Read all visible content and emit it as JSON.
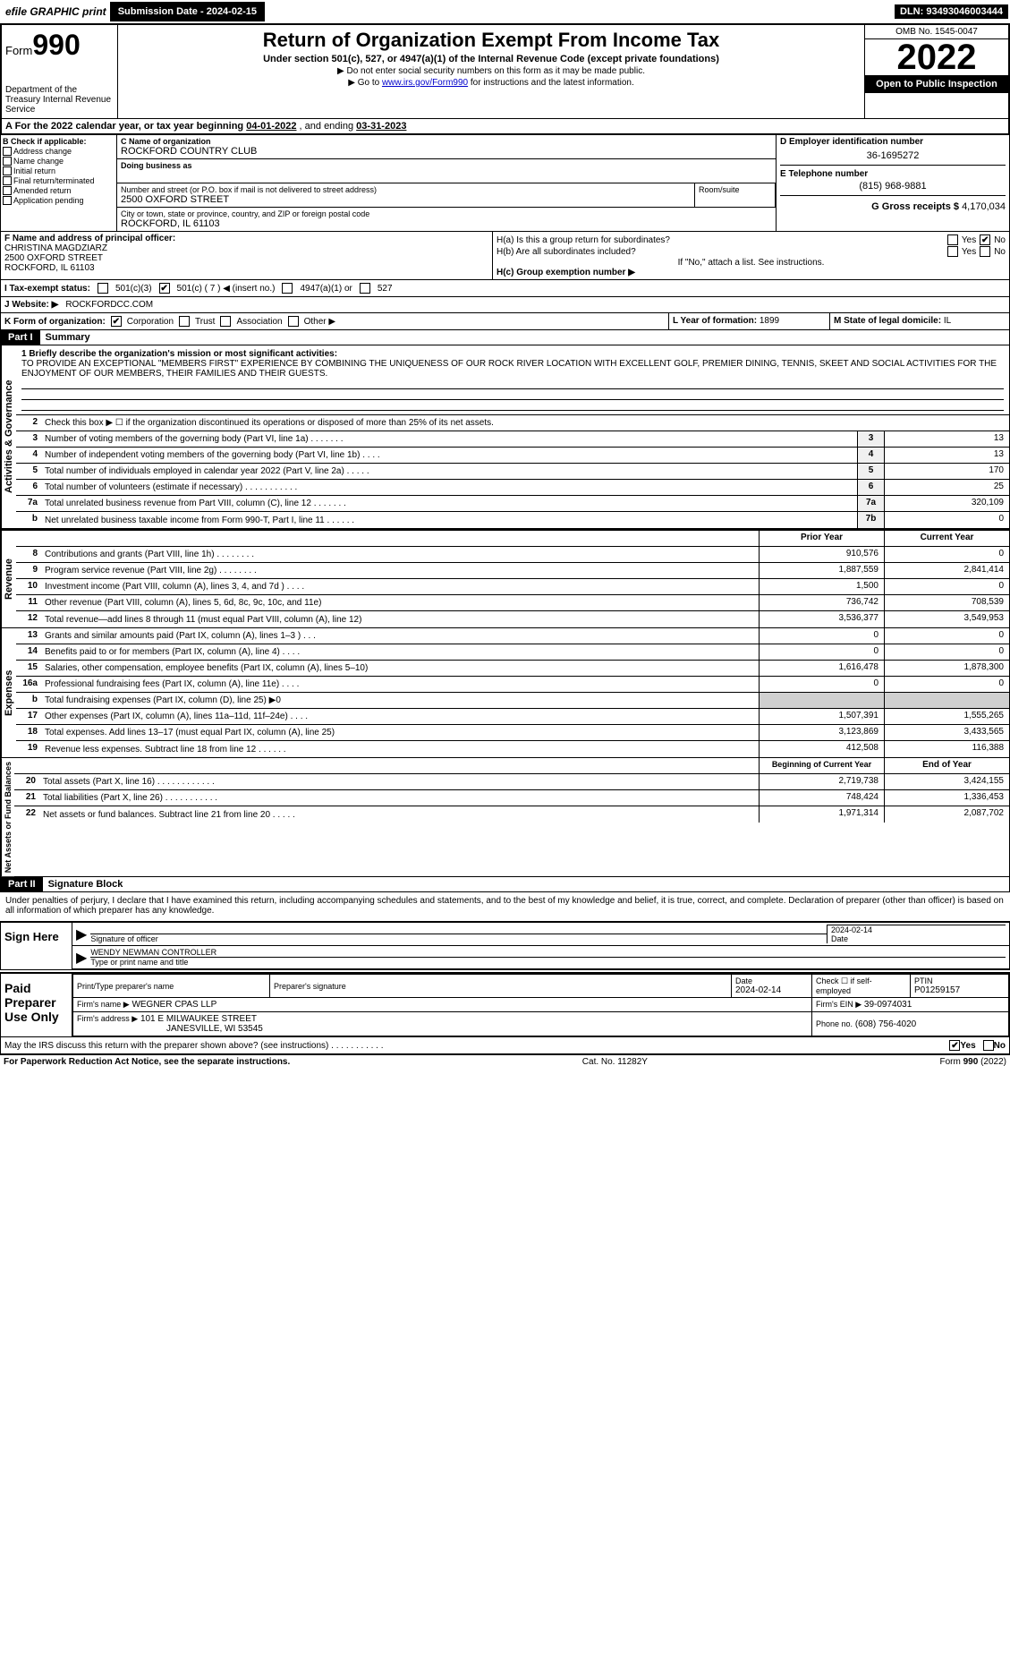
{
  "topbar": {
    "efile": "efile GRAPHIC print",
    "submission": "Submission Date - 2024-02-15",
    "dln": "DLN: 93493046003444"
  },
  "header": {
    "form_label": "Form",
    "form_no": "990",
    "dept": "Department of the Treasury Internal Revenue Service",
    "title": "Return of Organization Exempt From Income Tax",
    "subtitle": "Under section 501(c), 527, or 4947(a)(1) of the Internal Revenue Code (except private foundations)",
    "note1": "▶ Do not enter social security numbers on this form as it may be made public.",
    "note2_pre": "▶ Go to ",
    "note2_link": "www.irs.gov/Form990",
    "note2_post": " for instructions and the latest information.",
    "omb": "OMB No. 1545-0047",
    "year": "2022",
    "inspection": "Open to Public Inspection"
  },
  "period": {
    "label_a": "A For the 2022 calendar year, or tax year beginning ",
    "begin": "04-01-2022",
    "mid": " , and ending ",
    "end": "03-31-2023"
  },
  "box_b": {
    "title": "B Check if applicable:",
    "opts": [
      "Address change",
      "Name change",
      "Initial return",
      "Final return/terminated",
      "Amended return",
      "Application pending"
    ]
  },
  "box_c": {
    "name_label": "C Name of organization",
    "name": "ROCKFORD COUNTRY CLUB",
    "dba_label": "Doing business as",
    "addr_label": "Number and street (or P.O. box if mail is not delivered to street address)",
    "room_label": "Room/suite",
    "addr": "2500 OXFORD STREET",
    "city_label": "City or town, state or province, country, and ZIP or foreign postal code",
    "city": "ROCKFORD, IL  61103"
  },
  "box_d": {
    "label": "D Employer identification number",
    "val": "36-1695272"
  },
  "box_e": {
    "label": "E Telephone number",
    "val": "(815) 968-9881"
  },
  "box_g": {
    "label": "G Gross receipts $",
    "val": "4,170,034"
  },
  "box_f": {
    "label": "F Name and address of principal officer:",
    "name": "CHRISTINA MAGDZIARZ",
    "addr1": "2500 OXFORD STREET",
    "addr2": "ROCKFORD, IL  61103"
  },
  "box_h": {
    "a": "H(a)  Is this a group return for subordinates?",
    "b": "H(b)  Are all subordinates included?",
    "b_note": "If \"No,\" attach a list. See instructions.",
    "c": "H(c)  Group exemption number ▶"
  },
  "box_i": {
    "label": "I Tax-exempt status:",
    "c7": "501(c) ( 7 ) ◀ (insert no.)",
    "c3": "501(c)(3)",
    "a1": "4947(a)(1) or",
    "s527": "527"
  },
  "box_j": {
    "label": "J Website: ▶",
    "val": "ROCKFORDCC.COM"
  },
  "box_k": {
    "label": "K Form of organization:",
    "corp": "Corporation",
    "trust": "Trust",
    "assoc": "Association",
    "other": "Other ▶"
  },
  "box_l": {
    "label": "L Year of formation:",
    "val": "1899"
  },
  "box_m": {
    "label": "M State of legal domicile:",
    "val": "IL"
  },
  "part1": {
    "hdr": "Part I",
    "title": "Summary",
    "line1_label": "1 Briefly describe the organization's mission or most significant activities:",
    "mission": "TO PROVIDE AN EXCEPTIONAL \"MEMBERS FIRST\" EXPERIENCE BY COMBINING THE UNIQUENESS OF OUR ROCK RIVER LOCATION WITH EXCELLENT GOLF, PREMIER DINING, TENNIS, SKEET AND SOCIAL ACTIVITIES FOR THE ENJOYMENT OF OUR MEMBERS, THEIR FAMILIES AND THEIR GUESTS.",
    "line2": "Check this box ▶ ☐ if the organization discontinued its operations or disposed of more than 25% of its net assets.",
    "gov_label": "Activities & Governance",
    "rows_gov": [
      {
        "n": "3",
        "d": "Number of voting members of the governing body (Part VI, line 1a)   .    .    .    .    .    .    .",
        "b": "3",
        "v": "13"
      },
      {
        "n": "4",
        "d": "Number of independent voting members of the governing body (Part VI, line 1b)  .    .    .    .",
        "b": "4",
        "v": "13"
      },
      {
        "n": "5",
        "d": "Total number of individuals employed in calendar year 2022 (Part V, line 2a)  .    .    .    .    .",
        "b": "5",
        "v": "170"
      },
      {
        "n": "6",
        "d": "Total number of volunteers (estimate if necessary)    .    .    .    .    .    .    .    .    .    .    .",
        "b": "6",
        "v": "25"
      },
      {
        "n": "7a",
        "d": "Total unrelated business revenue from Part VIII, column (C), line 12  .    .    .    .    .    .    .",
        "b": "7a",
        "v": "320,109"
      },
      {
        "n": "b",
        "d": "Net unrelated business taxable income from Form 990-T, Part I, line 11  .    .    .    .    .    .",
        "b": "7b",
        "v": "0"
      }
    ],
    "col_prior": "Prior Year",
    "col_current": "Current Year",
    "rev_label": "Revenue",
    "rows_rev": [
      {
        "n": "8",
        "d": "Contributions and grants (Part VIII, line 1h)     .    .    .    .    .    .    .    .",
        "p": "910,576",
        "c": "0"
      },
      {
        "n": "9",
        "d": "Program service revenue (Part VIII, line 2g)    .    .    .    .    .    .    .    .",
        "p": "1,887,559",
        "c": "2,841,414"
      },
      {
        "n": "10",
        "d": "Investment income (Part VIII, column (A), lines 3, 4, and 7d )    .    .    .    .",
        "p": "1,500",
        "c": "0"
      },
      {
        "n": "11",
        "d": "Other revenue (Part VIII, column (A), lines 5, 6d, 8c, 9c, 10c, and 11e)",
        "p": "736,742",
        "c": "708,539"
      },
      {
        "n": "12",
        "d": "Total revenue—add lines 8 through 11 (must equal Part VIII, column (A), line 12)",
        "p": "3,536,377",
        "c": "3,549,953"
      }
    ],
    "exp_label": "Expenses",
    "rows_exp": [
      {
        "n": "13",
        "d": "Grants and similar amounts paid (Part IX, column (A), lines 1–3 )  .    .    .",
        "p": "0",
        "c": "0"
      },
      {
        "n": "14",
        "d": "Benefits paid to or for members (Part IX, column (A), line 4)  .    .    .    .",
        "p": "0",
        "c": "0"
      },
      {
        "n": "15",
        "d": "Salaries, other compensation, employee benefits (Part IX, column (A), lines 5–10)",
        "p": "1,616,478",
        "c": "1,878,300"
      },
      {
        "n": "16a",
        "d": "Professional fundraising fees (Part IX, column (A), line 11e)  .    .    .    .",
        "p": "0",
        "c": "0"
      },
      {
        "n": "b",
        "d": "Total fundraising expenses (Part IX, column (D), line 25) ▶0",
        "p": "",
        "c": "",
        "shaded": true
      },
      {
        "n": "17",
        "d": "Other expenses (Part IX, column (A), lines 11a–11d, 11f–24e)     .    .    .    .",
        "p": "1,507,391",
        "c": "1,555,265"
      },
      {
        "n": "18",
        "d": "Total expenses. Add lines 13–17 (must equal Part IX, column (A), line 25)",
        "p": "3,123,869",
        "c": "3,433,565"
      },
      {
        "n": "19",
        "d": "Revenue less expenses. Subtract line 18 from line 12  .    .    .    .    .    .",
        "p": "412,508",
        "c": "116,388"
      }
    ],
    "na_label": "Net Assets or Fund Balances",
    "col_begin": "Beginning of Current Year",
    "col_end": "End of Year",
    "rows_na": [
      {
        "n": "20",
        "d": "Total assets (Part X, line 16)  .    .    .    .    .    .    .    .    .    .    .    .",
        "p": "2,719,738",
        "c": "3,424,155"
      },
      {
        "n": "21",
        "d": "Total liabilities (Part X, line 26)  .    .    .    .    .    .    .    .    .    .    .",
        "p": "748,424",
        "c": "1,336,453"
      },
      {
        "n": "22",
        "d": "Net assets or fund balances. Subtract line 21 from line 20  .    .    .    .    .",
        "p": "1,971,314",
        "c": "2,087,702"
      }
    ]
  },
  "part2": {
    "hdr": "Part II",
    "title": "Signature Block",
    "penalty": "Under penalties of perjury, I declare that I have examined this return, including accompanying schedules and statements, and to the best of my knowledge and belief, it is true, correct, and complete. Declaration of preparer (other than officer) is based on all information of which preparer has any knowledge.",
    "sign_here": "Sign Here",
    "sig_officer": "Signature of officer",
    "date": "Date",
    "sig_date": "2024-02-14",
    "officer_name": "WENDY NEWMAN  CONTROLLER",
    "type_name": "Type or print name and title",
    "paid_label": "Paid Preparer Use Only",
    "prep_name_label": "Print/Type preparer's name",
    "prep_sig_label": "Preparer's signature",
    "prep_date_label": "Date",
    "prep_date": "2024-02-14",
    "self_emp": "Check ☐ if self-employed",
    "ptin_label": "PTIN",
    "ptin": "P01259157",
    "firm_name_label": "Firm's name    ▶",
    "firm_name": "WEGNER CPAS LLP",
    "firm_ein_label": "Firm's EIN ▶",
    "firm_ein": "39-0974031",
    "firm_addr_label": "Firm's address ▶",
    "firm_addr1": "101 E MILWAUKEE STREET",
    "firm_addr2": "JANESVILLE, WI  53545",
    "phone_label": "Phone no.",
    "phone": "(608) 756-4020",
    "discuss": "May the IRS discuss this return with the preparer shown above? (see instructions)    .    .    .    .    .    .    .    .    .    .    .",
    "yes": "Yes",
    "no": "No"
  },
  "footer": {
    "left": "For Paperwork Reduction Act Notice, see the separate instructions.",
    "mid": "Cat. No. 11282Y",
    "right": "Form 990 (2022)"
  }
}
